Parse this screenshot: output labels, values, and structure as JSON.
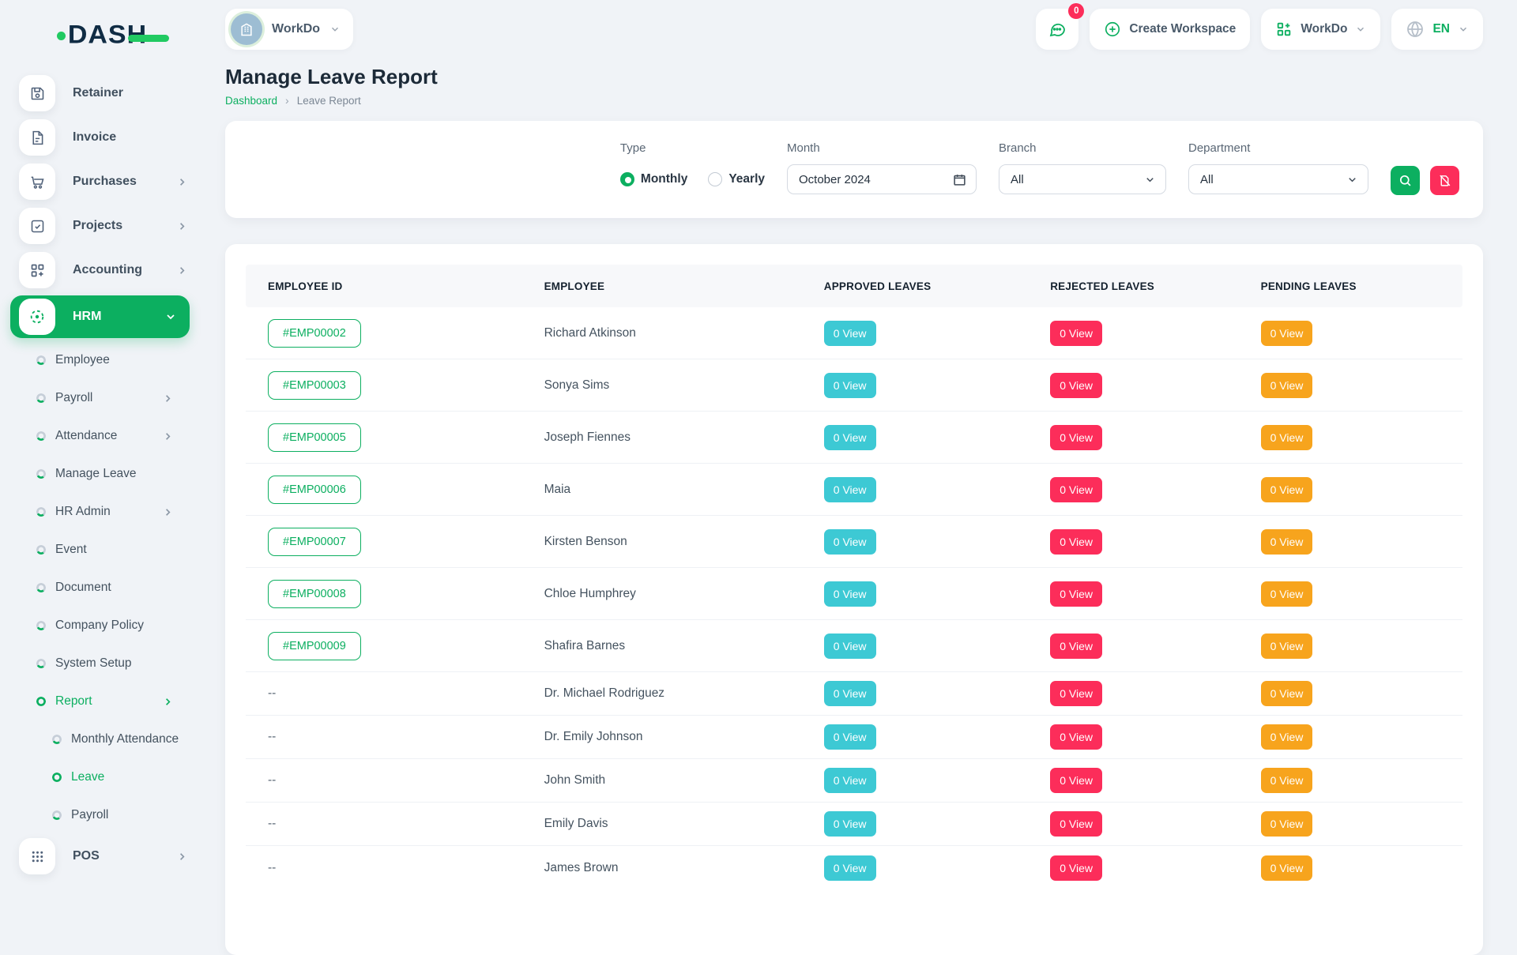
{
  "brand": {
    "logo_text": "DASH"
  },
  "topbar": {
    "workspace_name": "WorkDo",
    "messages_badge": "0",
    "create_workspace_label": "Create Workspace",
    "workdo_menu_label": "WorkDo",
    "language_label": "EN"
  },
  "sidebar": {
    "items": [
      {
        "label": "Retainer",
        "icon": "retainer-icon",
        "level": 0
      },
      {
        "label": "Invoice",
        "icon": "invoice-icon",
        "level": 0
      },
      {
        "label": "Purchases",
        "icon": "cart-icon",
        "level": 0,
        "chevron": "right"
      },
      {
        "label": "Projects",
        "icon": "projects-icon",
        "level": 0,
        "chevron": "right"
      },
      {
        "label": "Accounting",
        "icon": "accounting-icon",
        "level": 0,
        "chevron": "right"
      },
      {
        "label": "HRM",
        "icon": "hrm-icon",
        "level": 0,
        "chevron": "down",
        "active": true
      },
      {
        "label": "Employee",
        "level": 1
      },
      {
        "label": "Payroll",
        "level": 1,
        "chevron": "right"
      },
      {
        "label": "Attendance",
        "level": 1,
        "chevron": "right"
      },
      {
        "label": "Manage Leave",
        "level": 1
      },
      {
        "label": "HR Admin",
        "level": 1,
        "chevron": "right"
      },
      {
        "label": "Event",
        "level": 1
      },
      {
        "label": "Document",
        "level": 1
      },
      {
        "label": "Company Policy",
        "level": 1
      },
      {
        "label": "System Setup",
        "level": 1
      },
      {
        "label": "Report",
        "level": 1,
        "chevron": "right",
        "green": true
      },
      {
        "label": "Monthly Attendance",
        "level": 2
      },
      {
        "label": "Leave",
        "level": 2,
        "green": true
      },
      {
        "label": "Payroll",
        "level": 2
      },
      {
        "label": "POS",
        "icon": "pos-icon",
        "level": 0,
        "chevron": "right"
      }
    ]
  },
  "page": {
    "title": "Manage Leave Report",
    "breadcrumb": [
      "Dashboard",
      "Leave Report"
    ]
  },
  "filters": {
    "type": {
      "label": "Type",
      "options": [
        "Monthly",
        "Yearly"
      ],
      "selected": "Monthly"
    },
    "month": {
      "label": "Month",
      "value": "October 2024"
    },
    "branch": {
      "label": "Branch",
      "value": "All"
    },
    "department": {
      "label": "Department",
      "value": "All"
    }
  },
  "table": {
    "columns": [
      "EMPLOYEE ID",
      "EMPLOYEE",
      "APPROVED LEAVES",
      "REJECTED LEAVES",
      "PENDING LEAVES"
    ],
    "rows": [
      {
        "id": "#EMP00002",
        "employee": "Richard Atkinson",
        "approved": "0 View",
        "rejected": "0 View",
        "pending": "0 View"
      },
      {
        "id": "#EMP00003",
        "employee": "Sonya Sims",
        "approved": "0 View",
        "rejected": "0 View",
        "pending": "0 View"
      },
      {
        "id": "#EMP00005",
        "employee": "Joseph Fiennes",
        "approved": "0 View",
        "rejected": "0 View",
        "pending": "0 View"
      },
      {
        "id": "#EMP00006",
        "employee": "Maia",
        "approved": "0 View",
        "rejected": "0 View",
        "pending": "0 View"
      },
      {
        "id": "#EMP00007",
        "employee": "Kirsten Benson",
        "approved": "0 View",
        "rejected": "0 View",
        "pending": "0 View"
      },
      {
        "id": "#EMP00008",
        "employee": "Chloe Humphrey",
        "approved": "0 View",
        "rejected": "0 View",
        "pending": "0 View"
      },
      {
        "id": "#EMP00009",
        "employee": "Shafira Barnes",
        "approved": "0 View",
        "rejected": "0 View",
        "pending": "0 View"
      },
      {
        "id": "--",
        "employee": "Dr. Michael Rodriguez",
        "approved": "0 View",
        "rejected": "0 View",
        "pending": "0 View"
      },
      {
        "id": "--",
        "employee": "Dr. Emily Johnson",
        "approved": "0 View",
        "rejected": "0 View",
        "pending": "0 View"
      },
      {
        "id": "--",
        "employee": "John Smith",
        "approved": "0 View",
        "rejected": "0 View",
        "pending": "0 View"
      },
      {
        "id": "--",
        "employee": "Emily Davis",
        "approved": "0 View",
        "rejected": "0 View",
        "pending": "0 View"
      },
      {
        "id": "--",
        "employee": "James Brown",
        "approved": "0 View",
        "rejected": "0 View",
        "pending": "0 View"
      }
    ]
  },
  "colors": {
    "primary_green": "#0caf60",
    "approved_badge": "#3dc9d4",
    "rejected_badge": "#fc2d5a",
    "pending_badge": "#f7a41d"
  }
}
